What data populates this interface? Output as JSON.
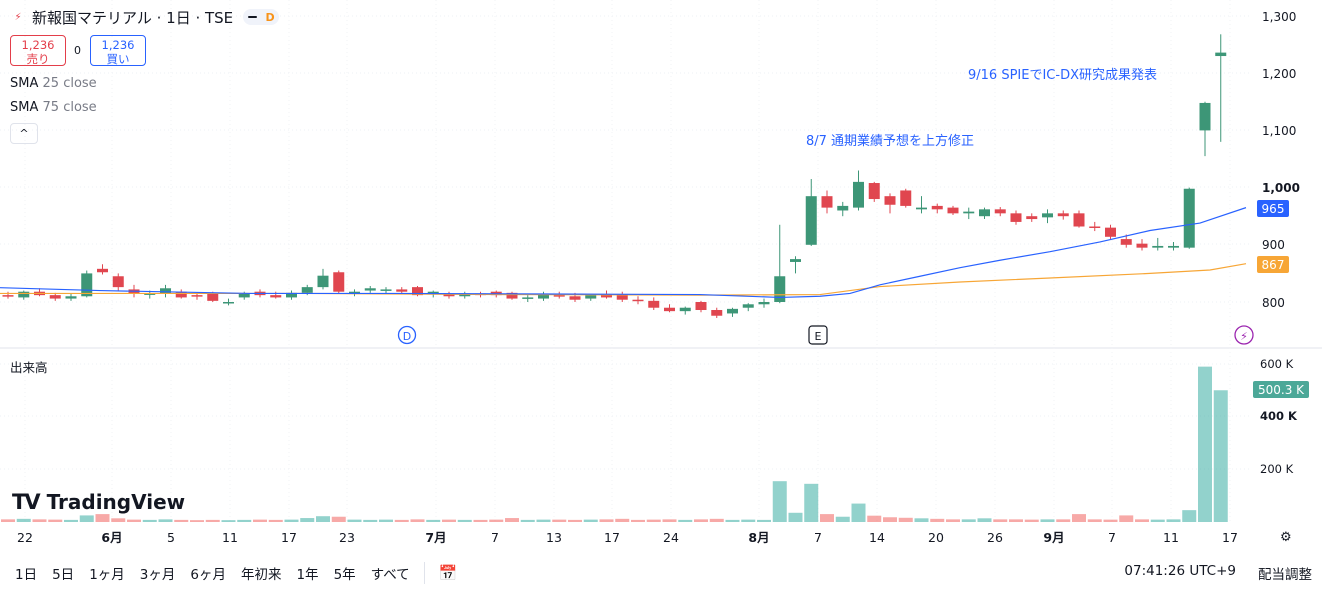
{
  "header": {
    "symbol_title": "新報国マテリアル · 1日 · TSE",
    "bolt_icon": "lightning-icon",
    "data_badge": "D"
  },
  "trade": {
    "sell_price": "1,236",
    "sell_label": "売り",
    "spread": "0",
    "buy_price": "1,236",
    "buy_label": "買い"
  },
  "indicators": [
    {
      "name": "SMA",
      "params": "25 close",
      "color": "#2962ff"
    },
    {
      "name": "SMA",
      "params": "75 close",
      "color": "#f7a636"
    }
  ],
  "collapse_icon": "chevron-up-icon",
  "annotations": {
    "note1": "8/7 通期業績予想を上方修正",
    "note2": "9/16 SPIEでIC-DX研究成果発表"
  },
  "event_markers": {
    "dividend": "D",
    "earnings": "E",
    "split": "⚡"
  },
  "price_axis": {
    "ticks": [
      "1,300",
      "1,200",
      "1,100",
      "1,000",
      "900",
      "800"
    ],
    "sma25_label": "965",
    "sma75_label": "867",
    "sma25_color": "#2962ff",
    "sma75_color": "#f7a636"
  },
  "volume": {
    "title": "出来高",
    "ticks": [
      "600 K",
      "400 K",
      "200 K"
    ],
    "last_label": "500.3 K"
  },
  "time_axis": [
    "22",
    "6月",
    "5",
    "11",
    "17",
    "23",
    "7月",
    "7",
    "13",
    "17",
    "24",
    "8月",
    "7",
    "14",
    "20",
    "26",
    "9月",
    "7",
    "11",
    "17"
  ],
  "logo": "TradingView",
  "bottom_bar": {
    "ranges": [
      "1日",
      "5日",
      "1ヶ月",
      "3ヶ月",
      "6ヶ月",
      "年初来",
      "1年",
      "5年",
      "すべて"
    ],
    "calendar_icon": "calendar-icon",
    "time": "07:41:26 UTC+9",
    "adjust": "配当調整"
  },
  "colors": {
    "up": "#26a69a",
    "down": "#ef5350",
    "up_candle": "#3d9677",
    "down_candle": "#e0464f"
  },
  "chart_data": {
    "type": "candlestick",
    "price_range": [
      740,
      1310
    ],
    "volume_range": [
      0,
      600000
    ],
    "candles": [
      {
        "o": 812,
        "h": 818,
        "l": 806,
        "c": 810
      },
      {
        "o": 808,
        "h": 820,
        "l": 804,
        "c": 818
      },
      {
        "o": 818,
        "h": 824,
        "l": 810,
        "c": 812
      },
      {
        "o": 812,
        "h": 816,
        "l": 802,
        "c": 806
      },
      {
        "o": 806,
        "h": 814,
        "l": 802,
        "c": 810
      },
      {
        "o": 810,
        "h": 855,
        "l": 808,
        "c": 850
      },
      {
        "o": 858,
        "h": 866,
        "l": 848,
        "c": 852
      },
      {
        "o": 845,
        "h": 850,
        "l": 820,
        "c": 826
      },
      {
        "o": 822,
        "h": 830,
        "l": 808,
        "c": 814
      },
      {
        "o": 814,
        "h": 820,
        "l": 806,
        "c": 815
      },
      {
        "o": 814,
        "h": 830,
        "l": 808,
        "c": 824
      },
      {
        "o": 818,
        "h": 822,
        "l": 806,
        "c": 808
      },
      {
        "o": 812,
        "h": 816,
        "l": 804,
        "c": 810
      },
      {
        "o": 814,
        "h": 818,
        "l": 800,
        "c": 802
      },
      {
        "o": 798,
        "h": 806,
        "l": 794,
        "c": 800
      },
      {
        "o": 808,
        "h": 818,
        "l": 804,
        "c": 814
      },
      {
        "o": 818,
        "h": 822,
        "l": 808,
        "c": 812
      },
      {
        "o": 812,
        "h": 818,
        "l": 806,
        "c": 808
      },
      {
        "o": 808,
        "h": 820,
        "l": 804,
        "c": 816
      },
      {
        "o": 816,
        "h": 830,
        "l": 812,
        "c": 826
      },
      {
        "o": 826,
        "h": 858,
        "l": 822,
        "c": 846
      },
      {
        "o": 852,
        "h": 855,
        "l": 815,
        "c": 818
      },
      {
        "o": 814,
        "h": 822,
        "l": 810,
        "c": 818
      },
      {
        "o": 820,
        "h": 828,
        "l": 816,
        "c": 824
      },
      {
        "o": 820,
        "h": 826,
        "l": 814,
        "c": 822
      },
      {
        "o": 822,
        "h": 826,
        "l": 815,
        "c": 818
      },
      {
        "o": 826,
        "h": 828,
        "l": 810,
        "c": 812
      },
      {
        "o": 815,
        "h": 820,
        "l": 808,
        "c": 818
      },
      {
        "o": 814,
        "h": 818,
        "l": 806,
        "c": 810
      },
      {
        "o": 810,
        "h": 818,
        "l": 806,
        "c": 815
      },
      {
        "o": 815,
        "h": 818,
        "l": 808,
        "c": 812
      },
      {
        "o": 818,
        "h": 820,
        "l": 808,
        "c": 812
      },
      {
        "o": 816,
        "h": 818,
        "l": 804,
        "c": 806
      },
      {
        "o": 806,
        "h": 812,
        "l": 800,
        "c": 808
      },
      {
        "o": 806,
        "h": 818,
        "l": 802,
        "c": 814
      },
      {
        "o": 812,
        "h": 818,
        "l": 806,
        "c": 810
      },
      {
        "o": 810,
        "h": 816,
        "l": 800,
        "c": 804
      },
      {
        "o": 806,
        "h": 814,
        "l": 802,
        "c": 812
      },
      {
        "o": 814,
        "h": 820,
        "l": 806,
        "c": 808
      },
      {
        "o": 812,
        "h": 818,
        "l": 800,
        "c": 804
      },
      {
        "o": 804,
        "h": 810,
        "l": 796,
        "c": 802
      },
      {
        "o": 802,
        "h": 808,
        "l": 786,
        "c": 790
      },
      {
        "o": 790,
        "h": 796,
        "l": 782,
        "c": 784
      },
      {
        "o": 784,
        "h": 792,
        "l": 778,
        "c": 790
      },
      {
        "o": 800,
        "h": 802,
        "l": 782,
        "c": 786
      },
      {
        "o": 786,
        "h": 790,
        "l": 772,
        "c": 776
      },
      {
        "o": 780,
        "h": 790,
        "l": 774,
        "c": 788
      },
      {
        "o": 790,
        "h": 798,
        "l": 784,
        "c": 796
      },
      {
        "o": 796,
        "h": 806,
        "l": 790,
        "c": 800
      },
      {
        "o": 800,
        "h": 935,
        "l": 798,
        "c": 845
      },
      {
        "o": 870,
        "h": 880,
        "l": 850,
        "c": 875
      },
      {
        "o": 900,
        "h": 1015,
        "l": 898,
        "c": 985
      },
      {
        "o": 985,
        "h": 995,
        "l": 955,
        "c": 965
      },
      {
        "o": 960,
        "h": 975,
        "l": 950,
        "c": 968
      },
      {
        "o": 965,
        "h": 1030,
        "l": 960,
        "c": 1010
      },
      {
        "o": 1008,
        "h": 1010,
        "l": 975,
        "c": 980
      },
      {
        "o": 985,
        "h": 990,
        "l": 955,
        "c": 970
      },
      {
        "o": 995,
        "h": 998,
        "l": 965,
        "c": 968
      },
      {
        "o": 962,
        "h": 985,
        "l": 955,
        "c": 965
      },
      {
        "o": 968,
        "h": 972,
        "l": 955,
        "c": 962
      },
      {
        "o": 965,
        "h": 968,
        "l": 952,
        "c": 955
      },
      {
        "o": 955,
        "h": 965,
        "l": 945,
        "c": 958
      },
      {
        "o": 950,
        "h": 965,
        "l": 945,
        "c": 962
      },
      {
        "o": 962,
        "h": 966,
        "l": 950,
        "c": 955
      },
      {
        "o": 955,
        "h": 960,
        "l": 935,
        "c": 940
      },
      {
        "o": 950,
        "h": 955,
        "l": 940,
        "c": 945
      },
      {
        "o": 948,
        "h": 962,
        "l": 938,
        "c": 955
      },
      {
        "o": 955,
        "h": 960,
        "l": 944,
        "c": 950
      },
      {
        "o": 955,
        "h": 960,
        "l": 930,
        "c": 932
      },
      {
        "o": 932,
        "h": 940,
        "l": 924,
        "c": 930
      },
      {
        "o": 930,
        "h": 935,
        "l": 910,
        "c": 914
      },
      {
        "o": 910,
        "h": 918,
        "l": 895,
        "c": 900
      },
      {
        "o": 902,
        "h": 910,
        "l": 890,
        "c": 895
      },
      {
        "o": 895,
        "h": 912,
        "l": 890,
        "c": 898
      },
      {
        "o": 895,
        "h": 905,
        "l": 890,
        "c": 898
      },
      {
        "o": 895,
        "h": 1000,
        "l": 893,
        "c": 998
      },
      {
        "o": 1100,
        "h": 1150,
        "l": 1055,
        "c": 1148
      },
      {
        "o": 1230,
        "h": 1268,
        "l": 1080,
        "c": 1236
      }
    ],
    "volumes": [
      10000,
      12000,
      10000,
      9000,
      8000,
      25000,
      30000,
      14000,
      9000,
      8000,
      10000,
      8000,
      7000,
      8000,
      7000,
      8000,
      9000,
      8000,
      9000,
      15000,
      22000,
      20000,
      9000,
      8000,
      9000,
      8000,
      10000,
      8000,
      9000,
      8000,
      8000,
      9000,
      15000,
      8000,
      9000,
      9000,
      8000,
      9000,
      10000,
      12000,
      8000,
      9000,
      10000,
      8000,
      10000,
      12000,
      8000,
      9000,
      8000,
      155000,
      35000,
      145000,
      30000,
      20000,
      70000,
      24000,
      18000,
      16000,
      14000,
      12000,
      10000,
      10000,
      14000,
      10000,
      10000,
      9000,
      10000,
      10000,
      30000,
      10000,
      9000,
      25000,
      10000,
      9000,
      10000,
      45000,
      590000,
      500300
    ],
    "sma25": [
      [
        0,
        825
      ],
      [
        100,
        820
      ],
      [
        250,
        815
      ],
      [
        400,
        815
      ],
      [
        550,
        814
      ],
      [
        700,
        813
      ],
      [
        780,
        808
      ],
      [
        820,
        810
      ],
      [
        850,
        815
      ],
      [
        880,
        830
      ],
      [
        920,
        845
      ],
      [
        960,
        860
      ],
      [
        1000,
        873
      ],
      [
        1050,
        888
      ],
      [
        1100,
        905
      ],
      [
        1150,
        925
      ],
      [
        1200,
        938
      ],
      [
        1246,
        965
      ]
    ],
    "sma75": [
      [
        0,
        815
      ],
      [
        150,
        815
      ],
      [
        300,
        815
      ],
      [
        500,
        813
      ],
      [
        700,
        812
      ],
      [
        820,
        813
      ],
      [
        880,
        827
      ],
      [
        960,
        835
      ],
      [
        1050,
        842
      ],
      [
        1150,
        850
      ],
      [
        1210,
        856
      ],
      [
        1246,
        867
      ]
    ]
  }
}
